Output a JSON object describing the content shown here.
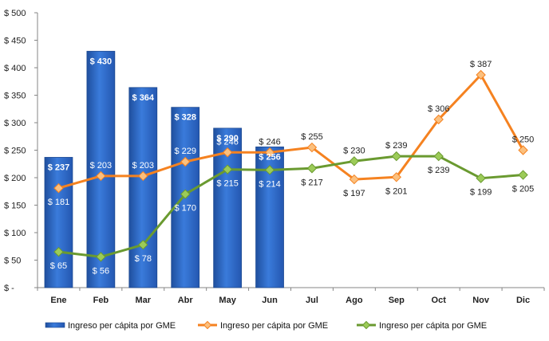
{
  "chart_data": {
    "type": "bar+line",
    "categories": [
      "Ene",
      "Feb",
      "Mar",
      "Abr",
      "May",
      "Jun",
      "Jul",
      "Ago",
      "Sep",
      "Oct",
      "Nov",
      "Dic"
    ],
    "ylim": [
      0,
      500
    ],
    "yticks": [
      0,
      50,
      100,
      150,
      200,
      250,
      300,
      350,
      400,
      450,
      500
    ],
    "ytick_labels": [
      "$ -",
      "$ 50",
      "$ 100",
      "$ 150",
      "$ 200",
      "$ 250",
      "$ 300",
      "$ 350",
      "$ 400",
      "$ 450",
      "$ 500"
    ],
    "grid": false,
    "legend_position": "bottom",
    "series": [
      {
        "name": "Ingreso per cápita por GME",
        "kind": "bar",
        "color": "#2E64C2",
        "values": [
          237,
          430,
          364,
          328,
          290,
          256,
          null,
          null,
          null,
          null,
          null,
          null
        ],
        "labels": [
          "$ 237",
          "$ 430",
          "$ 364",
          "$ 328",
          "$ 290",
          "$ 256",
          null,
          null,
          null,
          null,
          null,
          null
        ]
      },
      {
        "name": "Ingreso per cápita por GME",
        "kind": "line",
        "color": "#F58220",
        "marker_fill": "#FBC07E",
        "values": [
          181,
          203,
          203,
          229,
          246,
          246,
          255,
          197,
          201,
          306,
          387,
          250
        ],
        "labels": [
          "$ 181",
          "$ 203",
          "$ 203",
          "$ 229",
          "$ 246",
          "$ 246",
          "$ 255",
          "$ 197",
          "$ 201",
          "$ 306",
          "$ 387",
          "$ 250"
        ]
      },
      {
        "name": "Ingreso per cápita por GME",
        "kind": "line",
        "color": "#6A9A30",
        "marker_fill": "#9CCB58",
        "values": [
          65,
          56,
          78,
          170,
          215,
          214,
          217,
          230,
          239,
          239,
          199,
          205
        ],
        "labels": [
          "$ 65",
          "$ 56",
          "$ 78",
          "$ 170",
          "$ 215",
          "$ 214",
          "$ 217",
          "$ 230",
          "$ 239",
          "$ 239",
          "$ 199",
          "$ 205"
        ]
      }
    ]
  }
}
